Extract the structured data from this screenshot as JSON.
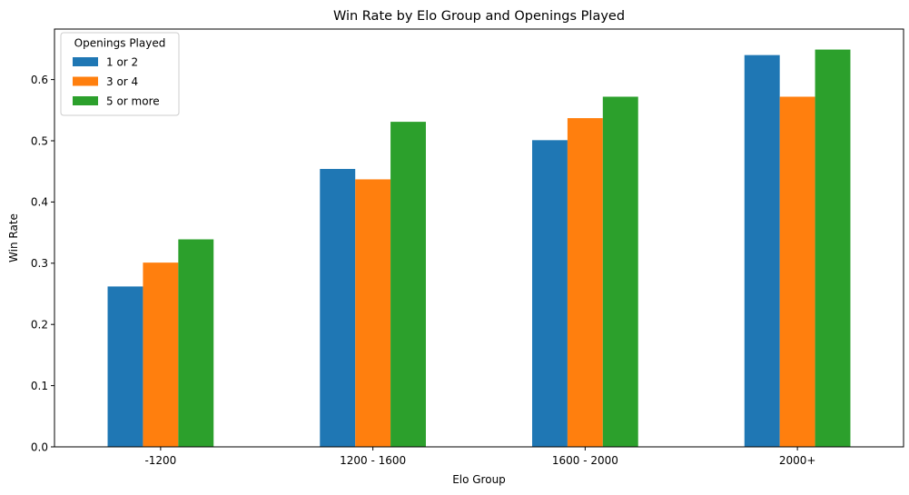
{
  "chart_data": {
    "type": "bar",
    "title": "Win Rate by Elo Group and Openings Played",
    "xlabel": "Elo Group",
    "ylabel": "Win Rate",
    "categories": [
      "-1200",
      "1200 - 1600",
      "1600 - 2000",
      "2000+"
    ],
    "series": [
      {
        "name": "1 or 2",
        "color": "#1f77b4",
        "values": [
          0.262,
          0.454,
          0.501,
          0.64
        ]
      },
      {
        "name": "3 or 4",
        "color": "#ff7f0e",
        "values": [
          0.301,
          0.437,
          0.537,
          0.572
        ]
      },
      {
        "name": "5 or more",
        "color": "#2ca02c",
        "values": [
          0.339,
          0.531,
          0.572,
          0.649
        ]
      }
    ],
    "ylim": [
      0,
      0.6825
    ],
    "yticks": [
      0.0,
      0.1,
      0.2,
      0.3,
      0.4,
      0.5,
      0.6
    ],
    "grid": false,
    "legend": {
      "title": "Openings Played",
      "position": "top-left"
    }
  }
}
